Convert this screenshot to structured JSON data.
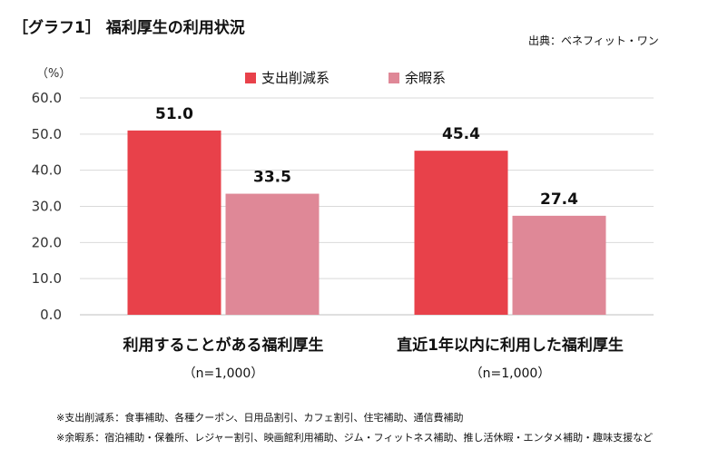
{
  "title": "［グラフ1］ 福利厚生の利用状況",
  "source": "出典：ベネフィット・ワン",
  "unit_label": "（%）",
  "legend": [
    {
      "label": "支出削減系",
      "color": "#e8414a"
    },
    {
      "label": "余暇系",
      "color": "#df8897"
    }
  ],
  "chart_data": {
    "type": "bar",
    "categories": [
      "利用することがある福利厚生",
      "直近1年以内に利用した福利厚生"
    ],
    "sample_sizes": [
      "（n=1,000）",
      "（n=1,000）"
    ],
    "series": [
      {
        "name": "支出削減系",
        "values": [
          51.0,
          45.4
        ],
        "color": "#e8414a"
      },
      {
        "name": "余暇系",
        "values": [
          33.5,
          27.4
        ],
        "color": "#df8897"
      }
    ],
    "value_labels": [
      [
        "51.0",
        "45.4"
      ],
      [
        "33.5",
        "27.4"
      ]
    ],
    "yticks": [
      "0.0",
      "10.0",
      "20.0",
      "30.0",
      "40.0",
      "50.0",
      "60.0"
    ],
    "ylim": [
      0,
      60
    ],
    "grid": true
  },
  "notes": [
    "※支出削減系：食事補助、各種クーポン、日用品割引、カフェ割引、住宅補助、通信費補助",
    "※余暇系：宿泊補助・保養所、レジャー割引、映画館利用補助、ジム・フィットネス補助、推し活休暇・エンタメ補助・趣味支援など"
  ]
}
